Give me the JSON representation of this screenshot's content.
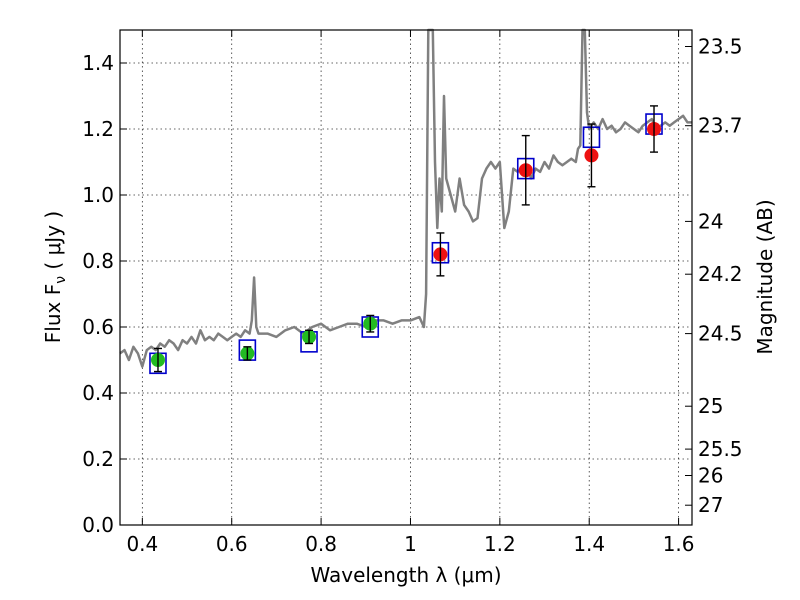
{
  "chart_data": {
    "type": "scatter",
    "xlabel": "Wavelength  λ (μm)",
    "ylabel": "Flux  F",
    "ylabel_sub": "ν",
    "ylabel_unit": " ( μJy )",
    "y2label": "Magnitude (AB)",
    "xlim": [
      0.35,
      1.63
    ],
    "ylim": [
      0.0,
      1.5
    ],
    "grid": true,
    "x_ticks": [
      0.4,
      0.6,
      0.8,
      1.0,
      1.2,
      1.4,
      1.6
    ],
    "x_tick_labels": [
      "0.4",
      "0.6",
      "0.8",
      "1",
      "1.2",
      "1.4",
      "1.6"
    ],
    "y_ticks": [
      0.0,
      0.2,
      0.4,
      0.6,
      0.8,
      1.0,
      1.2,
      1.4
    ],
    "y_tick_labels": [
      "0.0",
      "0.2",
      "0.4",
      "0.6",
      "0.8",
      "1.0",
      "1.2",
      "1.4"
    ],
    "y2_ticks": [
      {
        "label": "23.5",
        "flux": 1.45
      },
      {
        "label": "23.7",
        "flux": 1.21
      },
      {
        "label": "24",
        "flux": 0.92
      },
      {
        "label": "24.2",
        "flux": 0.76
      },
      {
        "label": "24.5",
        "flux": 0.58
      },
      {
        "label": "25",
        "flux": 0.36
      },
      {
        "label": "25.5",
        "flux": 0.23
      },
      {
        "label": "26",
        "flux": 0.15
      },
      {
        "label": "27",
        "flux": 0.06
      }
    ],
    "series": [
      {
        "kind": "spectrum",
        "color": "#808080",
        "x": [
          0.35,
          0.36,
          0.37,
          0.38,
          0.39,
          0.4,
          0.41,
          0.42,
          0.43,
          0.44,
          0.45,
          0.46,
          0.47,
          0.48,
          0.49,
          0.5,
          0.51,
          0.52,
          0.53,
          0.54,
          0.55,
          0.56,
          0.57,
          0.58,
          0.59,
          0.6,
          0.61,
          0.62,
          0.63,
          0.64,
          0.645,
          0.65,
          0.655,
          0.66,
          0.68,
          0.7,
          0.72,
          0.74,
          0.76,
          0.78,
          0.8,
          0.82,
          0.84,
          0.86,
          0.88,
          0.9,
          0.92,
          0.94,
          0.96,
          0.98,
          1.0,
          1.02,
          1.03,
          1.035,
          1.04,
          1.045,
          1.05,
          1.055,
          1.06,
          1.065,
          1.07,
          1.075,
          1.08,
          1.09,
          1.1,
          1.11,
          1.12,
          1.13,
          1.14,
          1.15,
          1.16,
          1.17,
          1.18,
          1.19,
          1.2,
          1.21,
          1.22,
          1.23,
          1.24,
          1.25,
          1.26,
          1.27,
          1.28,
          1.29,
          1.3,
          1.31,
          1.32,
          1.33,
          1.34,
          1.35,
          1.36,
          1.37,
          1.375,
          1.38,
          1.385,
          1.39,
          1.395,
          1.4,
          1.41,
          1.42,
          1.43,
          1.44,
          1.45,
          1.46,
          1.47,
          1.48,
          1.49,
          1.5,
          1.51,
          1.52,
          1.53,
          1.54,
          1.55,
          1.56,
          1.57,
          1.58,
          1.59,
          1.6,
          1.61,
          1.62,
          1.63
        ],
        "y": [
          0.52,
          0.53,
          0.5,
          0.54,
          0.52,
          0.48,
          0.53,
          0.54,
          0.53,
          0.55,
          0.54,
          0.56,
          0.55,
          0.53,
          0.56,
          0.55,
          0.57,
          0.55,
          0.59,
          0.56,
          0.57,
          0.56,
          0.58,
          0.57,
          0.56,
          0.57,
          0.58,
          0.57,
          0.59,
          0.58,
          0.62,
          0.75,
          0.6,
          0.58,
          0.58,
          0.57,
          0.59,
          0.6,
          0.58,
          0.6,
          0.61,
          0.59,
          0.6,
          0.61,
          0.61,
          0.6,
          0.62,
          0.62,
          0.61,
          0.62,
          0.62,
          0.63,
          0.6,
          0.7,
          1.5,
          1.5,
          1.5,
          1.1,
          0.9,
          1.05,
          0.95,
          1.3,
          1.05,
          1.0,
          0.95,
          1.05,
          0.97,
          0.95,
          0.92,
          0.93,
          1.05,
          1.08,
          1.1,
          1.08,
          1.1,
          0.9,
          0.95,
          1.08,
          1.07,
          1.08,
          1.09,
          1.05,
          1.08,
          1.07,
          1.1,
          1.08,
          1.12,
          1.1,
          1.09,
          1.1,
          1.11,
          1.1,
          1.14,
          1.15,
          1.5,
          1.5,
          1.25,
          1.2,
          1.22,
          1.2,
          1.23,
          1.2,
          1.21,
          1.19,
          1.2,
          1.22,
          1.21,
          1.2,
          1.19,
          1.21,
          1.22,
          1.23,
          1.2,
          1.21,
          1.22,
          1.21,
          1.22,
          1.23,
          1.24,
          1.22,
          1.22
        ]
      },
      {
        "kind": "model",
        "marker": "square",
        "color": "#0000cc",
        "x": [
          0.435,
          0.635,
          0.773,
          0.91,
          1.067,
          1.258,
          1.405,
          1.545
        ],
        "y": [
          0.49,
          0.53,
          0.555,
          0.6,
          0.825,
          1.08,
          1.175,
          1.215
        ]
      },
      {
        "kind": "observed",
        "marker": "circle",
        "x": [
          0.435,
          0.635,
          0.773,
          0.91,
          1.067,
          1.258,
          1.405,
          1.545
        ],
        "y": [
          0.5,
          0.52,
          0.57,
          0.61,
          0.82,
          1.075,
          1.12,
          1.2
        ],
        "err": [
          0.035,
          0.02,
          0.02,
          0.025,
          0.065,
          0.105,
          0.095,
          0.07
        ],
        "colors": [
          "#22bb22",
          "#22bb22",
          "#22bb22",
          "#22bb22",
          "#ee1111",
          "#ee1111",
          "#ee1111",
          "#ee1111"
        ]
      }
    ]
  }
}
